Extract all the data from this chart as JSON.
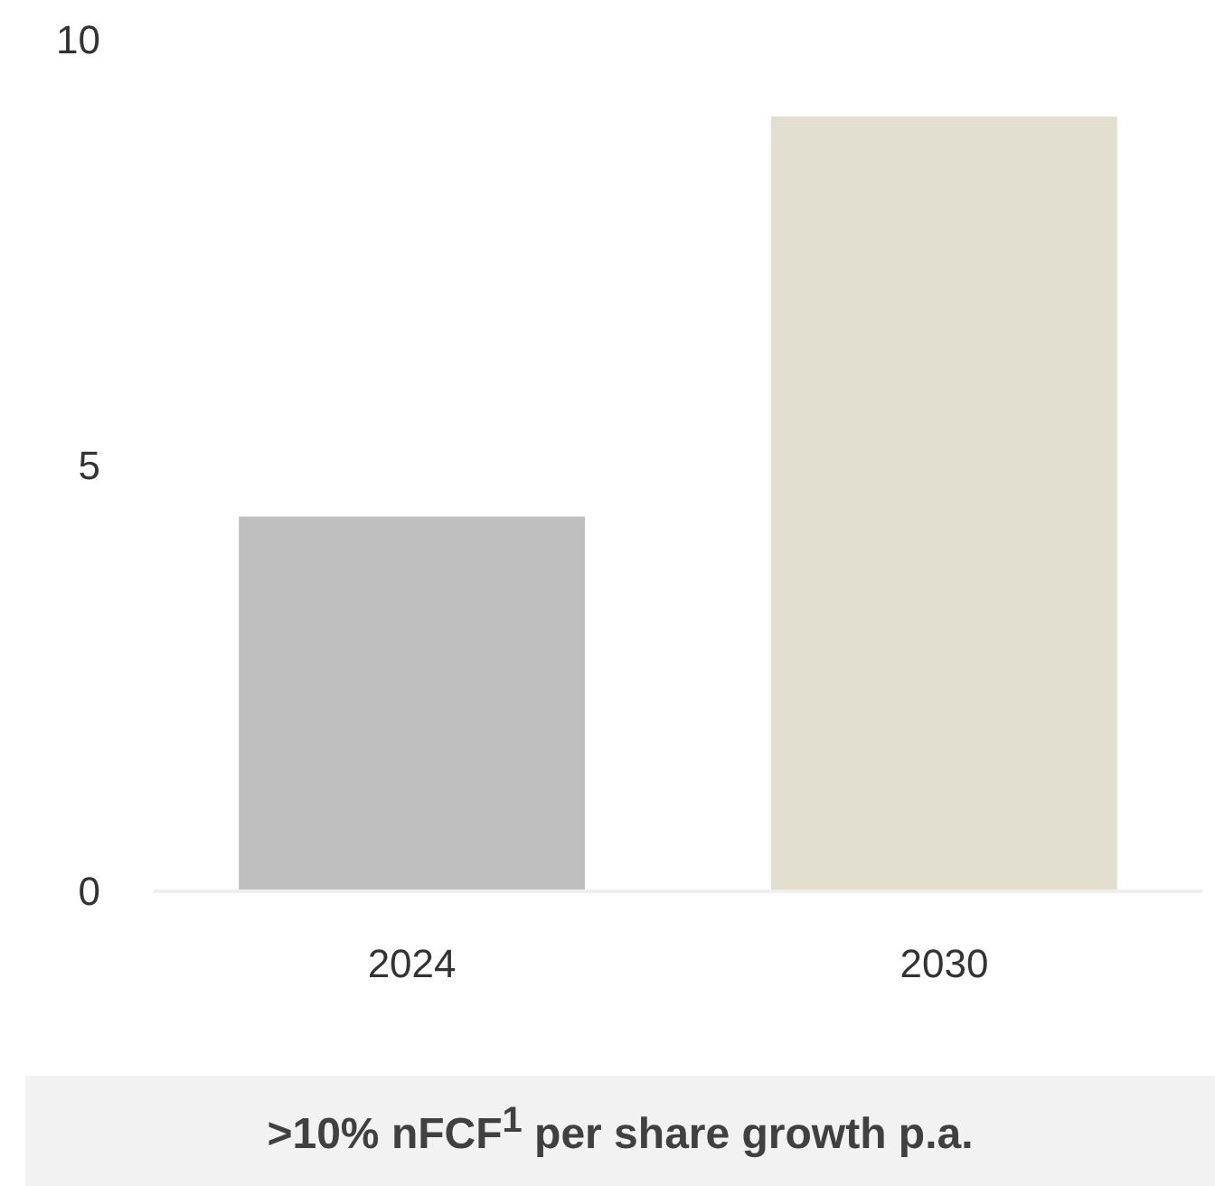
{
  "chart_data": {
    "type": "bar",
    "categories": [
      "2024",
      "2030"
    ],
    "values": [
      4.4,
      9.1
    ],
    "colors": [
      "#bfbfbf",
      "#e2dfd0"
    ],
    "ylim": [
      0,
      10
    ],
    "yticks": [
      0,
      5,
      10
    ],
    "grid": false,
    "legend": false,
    "annotations": [
      ">10% nFCF$^{1}$ per share growth p.a."
    ]
  }
}
